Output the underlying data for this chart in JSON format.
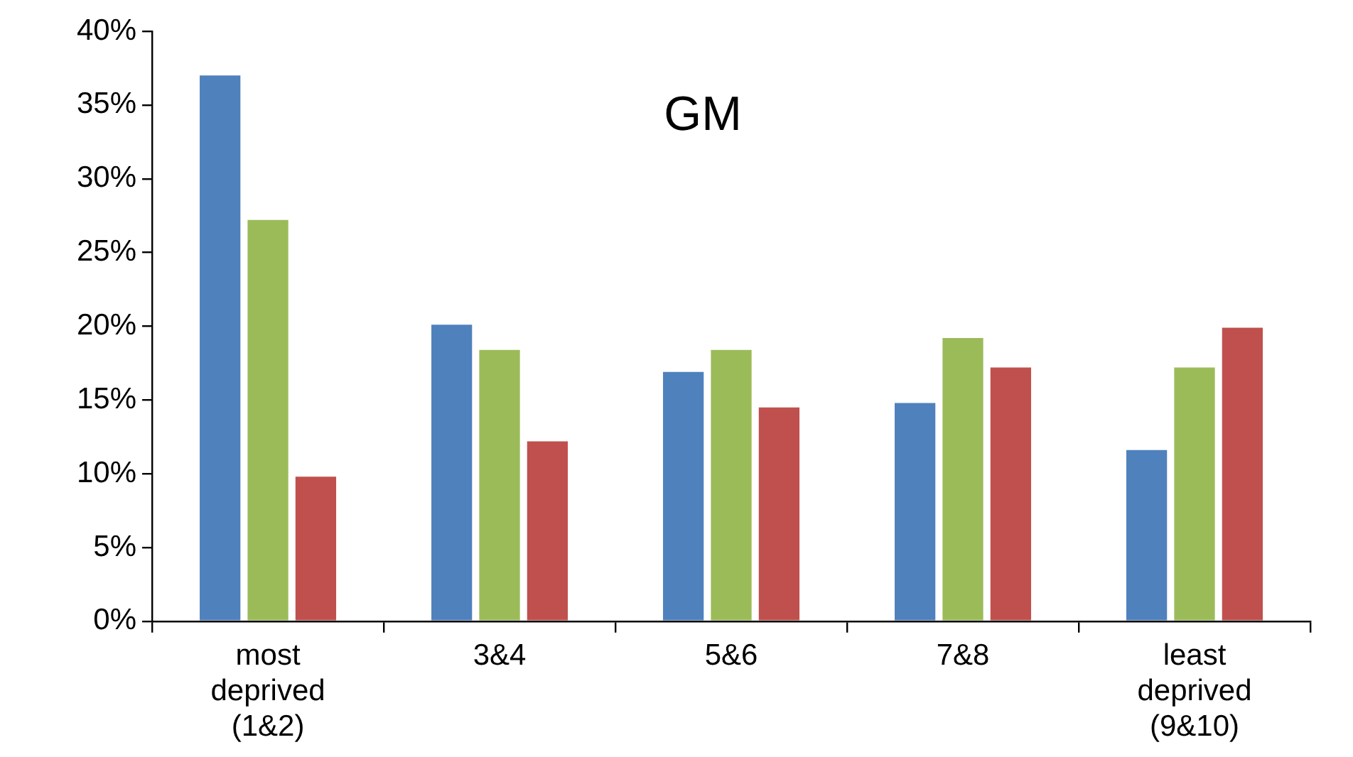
{
  "chart_data": {
    "type": "bar",
    "title": "GM",
    "categories": [
      "most deprived (1&2)",
      "3&4",
      "5&6",
      "7&8",
      "least deprived (9&10)"
    ],
    "series": [
      {
        "color": "#4f81bd",
        "values": [
          37,
          20.1,
          16.9,
          14.8,
          11.6
        ]
      },
      {
        "color": "#9bbb59",
        "values": [
          27.2,
          18.4,
          18.4,
          19.2,
          17.2
        ]
      },
      {
        "color": "#c0504d",
        "values": [
          9.8,
          12.2,
          14.5,
          17.2,
          19.9
        ]
      }
    ],
    "ylim": [
      0,
      40
    ],
    "yticks": [
      {
        "value": 0,
        "label": "0%"
      },
      {
        "value": 5,
        "label": "5%"
      },
      {
        "value": 10,
        "label": "10%"
      },
      {
        "value": 15,
        "label": "15%"
      },
      {
        "value": 20,
        "label": "20%"
      },
      {
        "value": 25,
        "label": "25%"
      },
      {
        "value": 30,
        "label": "30%"
      },
      {
        "value": 35,
        "label": "35%"
      },
      {
        "value": 40,
        "label": "40%"
      }
    ],
    "grid": false,
    "legend": false
  }
}
